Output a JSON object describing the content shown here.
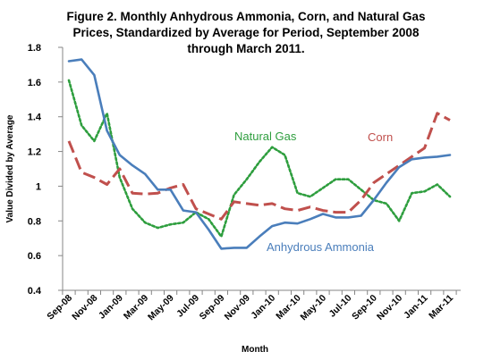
{
  "chart_data": {
    "type": "line",
    "title_lines": [
      "Figure 2.  Monthly Anhydrous Ammonia, Corn, and Natural Gas",
      "Prices, Standardized by Average for Period, September 2008",
      "through March 2011."
    ],
    "xlabel": "Month",
    "ylabel": "Value Divided by Average",
    "ylim": [
      0.4,
      1.8
    ],
    "yticks": [
      0.4,
      0.6,
      0.8,
      1,
      1.2,
      1.4,
      1.6,
      1.8
    ],
    "ytick_labels": [
      "0.4",
      "0.6",
      "0.8",
      "1",
      "1.2",
      "1.4",
      "1.6",
      "1.8"
    ],
    "months": [
      "Sep-08",
      "Oct-08",
      "Nov-08",
      "Dec-08",
      "Jan-09",
      "Feb-09",
      "Mar-09",
      "Apr-09",
      "May-09",
      "Jun-09",
      "Jul-09",
      "Aug-09",
      "Sep-09",
      "Oct-09",
      "Nov-09",
      "Dec-09",
      "Jan-10",
      "Feb-10",
      "Mar-10",
      "Apr-10",
      "May-10",
      "Jun-10",
      "Jul-10",
      "Aug-10",
      "Sep-10",
      "Oct-10",
      "Nov-10",
      "Dec-10",
      "Jan-11",
      "Feb-11",
      "Mar-11"
    ],
    "xtick_labels": [
      "Sep-08",
      "Nov-08",
      "Jan-09",
      "Mar-09",
      "May-09",
      "Jul-09",
      "Sep-09",
      "Nov-09",
      "Jan-10",
      "Mar-10",
      "May-10",
      "Jul-10",
      "Sep-10",
      "Nov-10",
      "Jan-11",
      "Mar-11"
    ],
    "grid": false,
    "legend": "inline labels",
    "series": [
      {
        "name": "Anhydrous Ammonia",
        "color": "#4a7ebb",
        "style": "solid",
        "values": [
          1.72,
          1.73,
          1.64,
          1.32,
          1.18,
          1.12,
          1.07,
          0.98,
          0.98,
          0.86,
          0.85,
          0.75,
          0.64,
          0.645,
          0.645,
          0.71,
          0.77,
          0.79,
          0.785,
          0.81,
          0.84,
          0.82,
          0.82,
          0.83,
          0.92,
          1.02,
          1.11,
          1.155,
          1.165,
          1.17,
          1.18
        ]
      },
      {
        "name": "Corn",
        "color": "#c0504d",
        "style": "dashed",
        "values": [
          1.26,
          1.08,
          1.05,
          1.01,
          1.1,
          0.96,
          0.955,
          0.96,
          0.99,
          1.01,
          0.87,
          0.84,
          0.81,
          0.91,
          0.9,
          0.89,
          0.9,
          0.87,
          0.86,
          0.88,
          0.86,
          0.85,
          0.85,
          0.92,
          1.02,
          1.07,
          1.12,
          1.17,
          1.22,
          1.42,
          1.38
        ]
      },
      {
        "name": "Natural Gas",
        "color": "#2e9e3e",
        "style": "dotted",
        "values": [
          1.61,
          1.35,
          1.26,
          1.42,
          1.05,
          0.87,
          0.79,
          0.76,
          0.78,
          0.79,
          0.85,
          0.81,
          0.71,
          0.95,
          1.04,
          1.14,
          1.225,
          1.18,
          0.96,
          0.94,
          0.99,
          1.04,
          1.04,
          0.98,
          0.92,
          0.9,
          0.8,
          0.96,
          0.97,
          1.01,
          0.94
        ]
      }
    ]
  }
}
